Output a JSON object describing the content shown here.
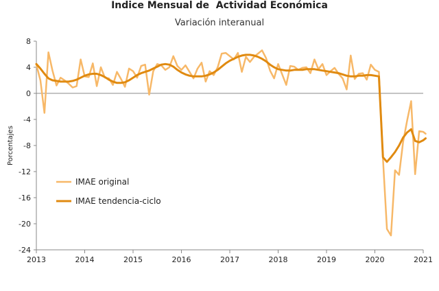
{
  "chart_data": {
    "type": "line",
    "title": "Indice Mensual de  Actividad Económica",
    "subtitle": "Variación interanual",
    "xlabel": "",
    "ylabel": "Porcentajes",
    "ylim": [
      -24,
      8
    ],
    "yticks": [
      8,
      4,
      0,
      -4,
      -8,
      -12,
      -16,
      -20,
      -24
    ],
    "xlim": [
      2013,
      2021
    ],
    "xticks": [
      2013,
      2014,
      2015,
      2016,
      2017,
      2018,
      2019,
      2020,
      2021
    ],
    "grid": false,
    "legend": "bottom-left",
    "series": [
      {
        "name": "IMAE original",
        "color": "#f7b868",
        "x": [
          2013.0,
          2013.083,
          2013.167,
          2013.25,
          2013.333,
          2013.417,
          2013.5,
          2013.583,
          2013.667,
          2013.75,
          2013.833,
          2013.917,
          2014.0,
          2014.083,
          2014.167,
          2014.25,
          2014.333,
          2014.417,
          2014.5,
          2014.583,
          2014.667,
          2014.75,
          2014.833,
          2014.917,
          2015.0,
          2015.083,
          2015.167,
          2015.25,
          2015.333,
          2015.417,
          2015.5,
          2015.583,
          2015.667,
          2015.75,
          2015.833,
          2015.917,
          2016.0,
          2016.083,
          2016.167,
          2016.25,
          2016.333,
          2016.417,
          2016.5,
          2016.583,
          2016.667,
          2016.75,
          2016.833,
          2016.917,
          2017.0,
          2017.083,
          2017.167,
          2017.25,
          2017.333,
          2017.417,
          2017.5,
          2017.583,
          2017.667,
          2017.75,
          2017.833,
          2017.917,
          2018.0,
          2018.083,
          2018.167,
          2018.25,
          2018.333,
          2018.417,
          2018.5,
          2018.583,
          2018.667,
          2018.75,
          2018.833,
          2018.917,
          2019.0,
          2019.083,
          2019.167,
          2019.25,
          2019.333,
          2019.417,
          2019.5,
          2019.583,
          2019.667,
          2019.75,
          2019.833,
          2019.917,
          2020.0,
          2020.083,
          2020.167,
          2020.25,
          2020.333,
          2020.417,
          2020.5,
          2020.583,
          2020.667,
          2020.75,
          2020.833,
          2020.917,
          2021.0,
          2021.05
        ],
        "values": [
          4.4,
          2.0,
          -3.0,
          6.3,
          3.5,
          1.2,
          2.4,
          2.0,
          1.5,
          0.9,
          1.1,
          5.2,
          2.6,
          2.5,
          4.6,
          1.1,
          4.0,
          2.4,
          2.3,
          1.3,
          3.3,
          2.2,
          1.0,
          3.8,
          3.4,
          2.4,
          4.2,
          4.4,
          -0.2,
          3.4,
          4.5,
          4.3,
          3.6,
          4.0,
          5.7,
          4.2,
          3.6,
          4.3,
          3.3,
          2.3,
          3.8,
          4.7,
          1.8,
          3.4,
          2.8,
          4.0,
          6.1,
          6.2,
          5.7,
          5.2,
          6.2,
          3.3,
          5.6,
          4.8,
          5.6,
          6.1,
          6.6,
          5.4,
          3.5,
          2.3,
          4.5,
          2.9,
          1.3,
          4.2,
          4.1,
          3.6,
          3.9,
          4.0,
          3.1,
          5.2,
          3.7,
          4.5,
          2.8,
          3.4,
          3.9,
          3.0,
          2.3,
          0.6,
          5.8,
          2.2,
          3.0,
          3.1,
          2.1,
          4.4,
          3.6,
          3.3,
          -10.0,
          -20.8,
          -21.8,
          -11.8,
          -12.5,
          -7.5,
          -4.2,
          -1.2,
          -12.4,
          -5.8,
          -5.9,
          -6.2
        ]
      },
      {
        "name": "IMAE tendencia-ciclo",
        "color": "#e08a10",
        "x": [
          2013.0,
          2013.083,
          2013.167,
          2013.25,
          2013.333,
          2013.417,
          2013.5,
          2013.583,
          2013.667,
          2013.75,
          2013.833,
          2013.917,
          2014.0,
          2014.083,
          2014.167,
          2014.25,
          2014.333,
          2014.417,
          2014.5,
          2014.583,
          2014.667,
          2014.75,
          2014.833,
          2014.917,
          2015.0,
          2015.083,
          2015.167,
          2015.25,
          2015.333,
          2015.417,
          2015.5,
          2015.583,
          2015.667,
          2015.75,
          2015.833,
          2015.917,
          2016.0,
          2016.083,
          2016.167,
          2016.25,
          2016.333,
          2016.417,
          2016.5,
          2016.583,
          2016.667,
          2016.75,
          2016.833,
          2016.917,
          2017.0,
          2017.083,
          2017.167,
          2017.25,
          2017.333,
          2017.417,
          2017.5,
          2017.583,
          2017.667,
          2017.75,
          2017.833,
          2017.917,
          2018.0,
          2018.083,
          2018.167,
          2018.25,
          2018.333,
          2018.417,
          2018.5,
          2018.583,
          2018.667,
          2018.75,
          2018.833,
          2018.917,
          2019.0,
          2019.083,
          2019.167,
          2019.25,
          2019.333,
          2019.417,
          2019.5,
          2019.583,
          2019.667,
          2019.75,
          2019.833,
          2019.917,
          2020.0,
          2020.083,
          2020.167,
          2020.25,
          2020.333,
          2020.417,
          2020.5,
          2020.583,
          2020.667,
          2020.75,
          2020.833,
          2020.917,
          2021.0,
          2021.05
        ],
        "values": [
          4.5,
          3.8,
          3.0,
          2.3,
          2.0,
          1.9,
          1.8,
          1.8,
          1.8,
          1.9,
          2.1,
          2.4,
          2.7,
          2.9,
          3.0,
          3.0,
          2.8,
          2.5,
          2.1,
          1.8,
          1.6,
          1.6,
          1.7,
          2.0,
          2.4,
          2.8,
          3.1,
          3.3,
          3.5,
          3.8,
          4.1,
          4.4,
          4.5,
          4.4,
          4.1,
          3.6,
          3.2,
          2.9,
          2.7,
          2.6,
          2.6,
          2.6,
          2.7,
          2.9,
          3.2,
          3.6,
          4.1,
          4.6,
          5.0,
          5.3,
          5.6,
          5.8,
          5.9,
          5.9,
          5.8,
          5.6,
          5.3,
          4.9,
          4.4,
          4.0,
          3.7,
          3.6,
          3.5,
          3.5,
          3.6,
          3.6,
          3.6,
          3.7,
          3.7,
          3.7,
          3.6,
          3.5,
          3.4,
          3.3,
          3.2,
          3.1,
          2.9,
          2.7,
          2.6,
          2.6,
          2.7,
          2.7,
          2.8,
          2.8,
          2.7,
          2.6,
          -9.8,
          -10.5,
          -9.8,
          -9.0,
          -8.0,
          -6.8,
          -6.0,
          -5.5,
          -7.3,
          -7.5,
          -7.2,
          -6.9
        ]
      }
    ]
  }
}
